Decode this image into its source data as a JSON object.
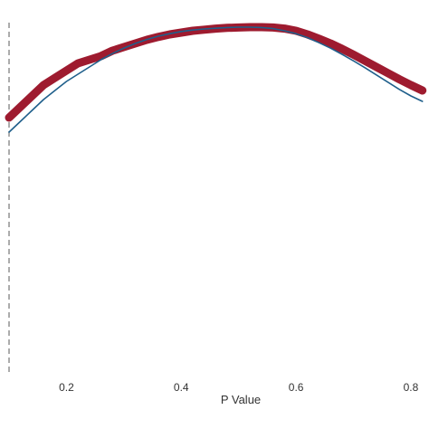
{
  "chart_data": {
    "type": "line",
    "xlabel": "P Value",
    "ylabel": "",
    "xlim": [
      0.1,
      0.83
    ],
    "ylim": [
      0,
      1
    ],
    "x_ticks": [
      0.2,
      0.4,
      0.6,
      0.8
    ],
    "x_tick_labels": [
      "0.2",
      "0.4",
      "0.6",
      "0.8"
    ],
    "grid": false,
    "reference_line": {
      "x": 0.1,
      "style": "dashed",
      "color": "#888888"
    },
    "series": [
      {
        "color": "#9e1b2f",
        "style": "thick-jittered",
        "x": [
          0.1,
          0.12,
          0.14,
          0.16,
          0.18,
          0.2,
          0.22,
          0.24,
          0.26,
          0.28,
          0.3,
          0.32,
          0.34,
          0.36,
          0.38,
          0.4,
          0.42,
          0.44,
          0.46,
          0.48,
          0.5,
          0.52,
          0.54,
          0.56,
          0.58,
          0.6,
          0.62,
          0.64,
          0.66,
          0.68,
          0.7,
          0.72,
          0.74,
          0.76,
          0.78,
          0.8,
          0.82
        ],
        "y": [
          0.7,
          0.73,
          0.76,
          0.79,
          0.81,
          0.83,
          0.85,
          0.86,
          0.87,
          0.885,
          0.895,
          0.905,
          0.915,
          0.923,
          0.93,
          0.935,
          0.94,
          0.943,
          0.946,
          0.948,
          0.949,
          0.95,
          0.95,
          0.949,
          0.946,
          0.94,
          0.93,
          0.918,
          0.905,
          0.89,
          0.874,
          0.857,
          0.84,
          0.823,
          0.806,
          0.79,
          0.775
        ]
      },
      {
        "color": "#1f5f8b",
        "style": "thin-smooth",
        "x": [
          0.1,
          0.12,
          0.14,
          0.16,
          0.18,
          0.2,
          0.22,
          0.24,
          0.26,
          0.28,
          0.3,
          0.32,
          0.34,
          0.36,
          0.38,
          0.4,
          0.42,
          0.44,
          0.46,
          0.48,
          0.5,
          0.52,
          0.54,
          0.56,
          0.58,
          0.6,
          0.62,
          0.64,
          0.66,
          0.68,
          0.7,
          0.72,
          0.74,
          0.76,
          0.78,
          0.8,
          0.82
        ],
        "y": [
          0.66,
          0.69,
          0.72,
          0.75,
          0.775,
          0.8,
          0.82,
          0.84,
          0.86,
          0.877,
          0.892,
          0.905,
          0.916,
          0.925,
          0.932,
          0.938,
          0.942,
          0.945,
          0.947,
          0.949,
          0.95,
          0.95,
          0.949,
          0.946,
          0.94,
          0.932,
          0.921,
          0.907,
          0.892,
          0.875,
          0.857,
          0.838,
          0.818,
          0.798,
          0.778,
          0.76,
          0.745
        ]
      }
    ]
  }
}
